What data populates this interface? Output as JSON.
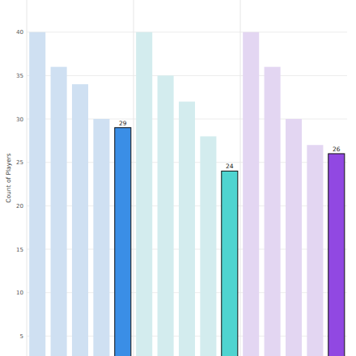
{
  "chart_data": {
    "type": "bar",
    "y_label": "Count of Players",
    "categories": [
      null,
      null,
      null,
      null,
      null,
      null,
      null,
      null,
      null,
      null,
      null,
      null,
      null,
      null,
      null
    ],
    "values": [
      40,
      36,
      34,
      30,
      29,
      40,
      35,
      32,
      28,
      24,
      40,
      36,
      30,
      27,
      26
    ],
    "value_labels": [
      null,
      null,
      null,
      null,
      "29",
      null,
      null,
      null,
      null,
      "24",
      null,
      null,
      null,
      null,
      "26"
    ],
    "colors": [
      "#cfe0f2",
      "#cfe0f2",
      "#cfe0f2",
      "#cfe0f2",
      "#3a8ee6",
      "#d3ecee",
      "#d3ecee",
      "#d3ecee",
      "#d3ecee",
      "#4fd4d0",
      "#e3d6f2",
      "#e3d6f2",
      "#e3d6f2",
      "#e3d6f2",
      "#9148e2"
    ],
    "ylim": [
      2.7,
      43.7
    ],
    "yticks": [
      5,
      10,
      15,
      20,
      25,
      30,
      35,
      40
    ],
    "grid": true,
    "tick_labels": "y"
  }
}
